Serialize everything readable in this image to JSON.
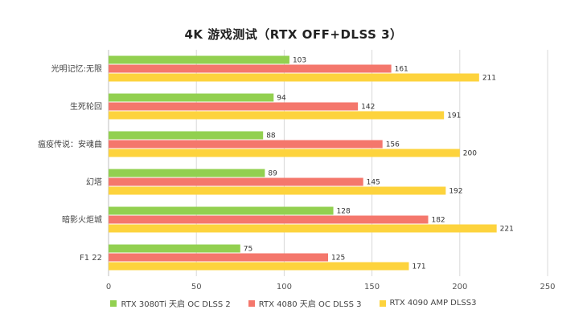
{
  "chart_data": {
    "type": "bar",
    "orientation": "horizontal",
    "title": "4K 游戏测试（RTX OFF+DLSS 3）",
    "categories": [
      "光明记忆:无限",
      "生死轮回",
      "瘟疫传说：安魂曲",
      "幻塔",
      "暗影火炬城",
      "F1 22"
    ],
    "series": [
      {
        "name": "RTX 3080Ti 天启 OC DLSS 2",
        "color": "#92d050",
        "values": [
          103,
          94,
          88,
          89,
          128,
          75
        ]
      },
      {
        "name": "RTX 4080 天启 OC DLSS 3",
        "color": "#f4776c",
        "values": [
          161,
          142,
          156,
          145,
          182,
          125
        ]
      },
      {
        "name": "RTX 4090 AMP   DLSS3",
        "color": "#fdd33d",
        "values": [
          211,
          191,
          200,
          192,
          221,
          171
        ]
      }
    ],
    "xlim": [
      0,
      250
    ],
    "xticks": [
      0,
      50,
      100,
      150,
      200,
      250
    ],
    "grid": true,
    "legend_position": "bottom"
  }
}
